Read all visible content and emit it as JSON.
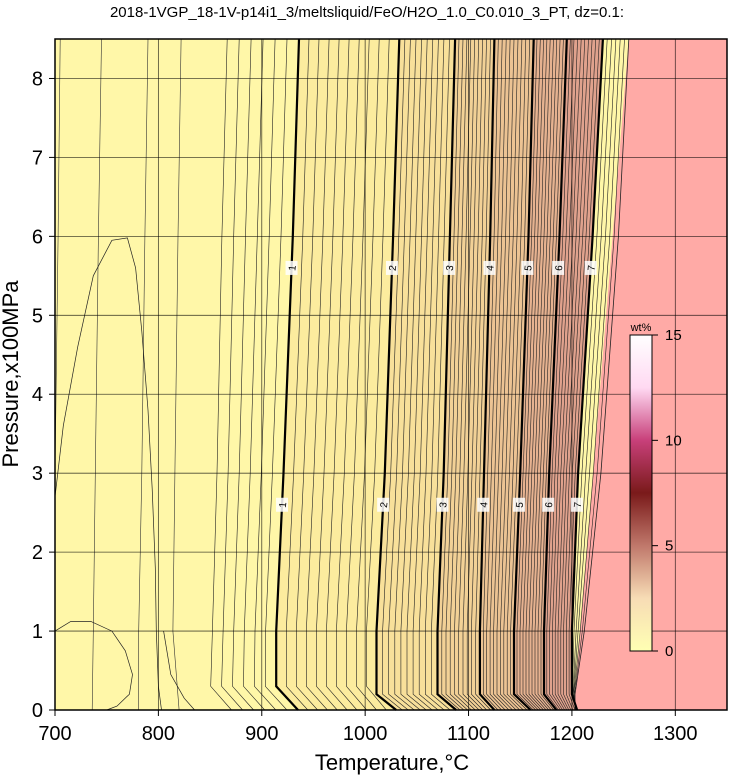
{
  "chart_data": {
    "type": "contour",
    "title": "2018-1VGP_18-1V-p14i1_3/meltsliquid/FeO/H2O_1.0_C0.010_3_PT, dz=0.1:",
    "xlabel": "Temperature,°C",
    "ylabel": "Pressure,x100MPa",
    "xlim": [
      700,
      1350
    ],
    "ylim": [
      0,
      8.5
    ],
    "x_ticks": [
      700,
      800,
      900,
      1000,
      1100,
      1200,
      1300
    ],
    "y_ticks": [
      0,
      1,
      2,
      3,
      4,
      5,
      6,
      7,
      8
    ],
    "grid": true,
    "contour_interval": 0.1,
    "colorbar": {
      "unit": "wt%",
      "min": 0,
      "max": 15,
      "ticks": [
        0,
        5,
        10,
        15
      ],
      "colors": [
        "#ffffb3",
        "#f7dcb5",
        "#c0786b",
        "#7a1a1a",
        "#c8407a",
        "#ffd9f2",
        "#ffffff"
      ]
    },
    "background_colors": {
      "low_temperature": "#fff7a8",
      "high_temperature": "#ffaaa6"
    },
    "major_contours": [
      {
        "label": "1",
        "points": [
          [
            936,
            8.5
          ],
          [
            930,
            6.0
          ],
          [
            921,
            3.0
          ],
          [
            914,
            1.0
          ],
          [
            914,
            0.3
          ],
          [
            935,
            0.0
          ]
        ]
      },
      {
        "label": "2",
        "points": [
          [
            1033,
            8.5
          ],
          [
            1027,
            6.0
          ],
          [
            1019,
            3.0
          ],
          [
            1011,
            1.0
          ],
          [
            1011,
            0.2
          ],
          [
            1030,
            0.0
          ]
        ]
      },
      {
        "label": "3",
        "points": [
          [
            1087,
            8.5
          ],
          [
            1082,
            6.0
          ],
          [
            1076,
            3.0
          ],
          [
            1070,
            1.0
          ],
          [
            1070,
            0.2
          ],
          [
            1088,
            0.0
          ]
        ]
      },
      {
        "label": "4",
        "points": [
          [
            1125,
            8.5
          ],
          [
            1121,
            6.0
          ],
          [
            1115,
            3.0
          ],
          [
            1111,
            1.0
          ],
          [
            1111,
            0.2
          ],
          [
            1125,
            0.0
          ]
        ]
      },
      {
        "label": "5",
        "points": [
          [
            1163,
            8.5
          ],
          [
            1158,
            6.0
          ],
          [
            1150,
            3.0
          ],
          [
            1144,
            1.0
          ],
          [
            1144,
            0.2
          ],
          [
            1160,
            0.0
          ]
        ]
      },
      {
        "label": "6",
        "points": [
          [
            1195,
            8.5
          ],
          [
            1188,
            6.0
          ],
          [
            1178,
            3.0
          ],
          [
            1173,
            1.0
          ],
          [
            1173,
            0.2
          ],
          [
            1185,
            0.0
          ]
        ]
      },
      {
        "label": "7",
        "points": [
          [
            1230,
            8.5
          ],
          [
            1220,
            6.0
          ],
          [
            1206,
            3.0
          ],
          [
            1200,
            1.0
          ],
          [
            1200,
            0.2
          ],
          [
            1205,
            0.0
          ]
        ]
      }
    ]
  }
}
